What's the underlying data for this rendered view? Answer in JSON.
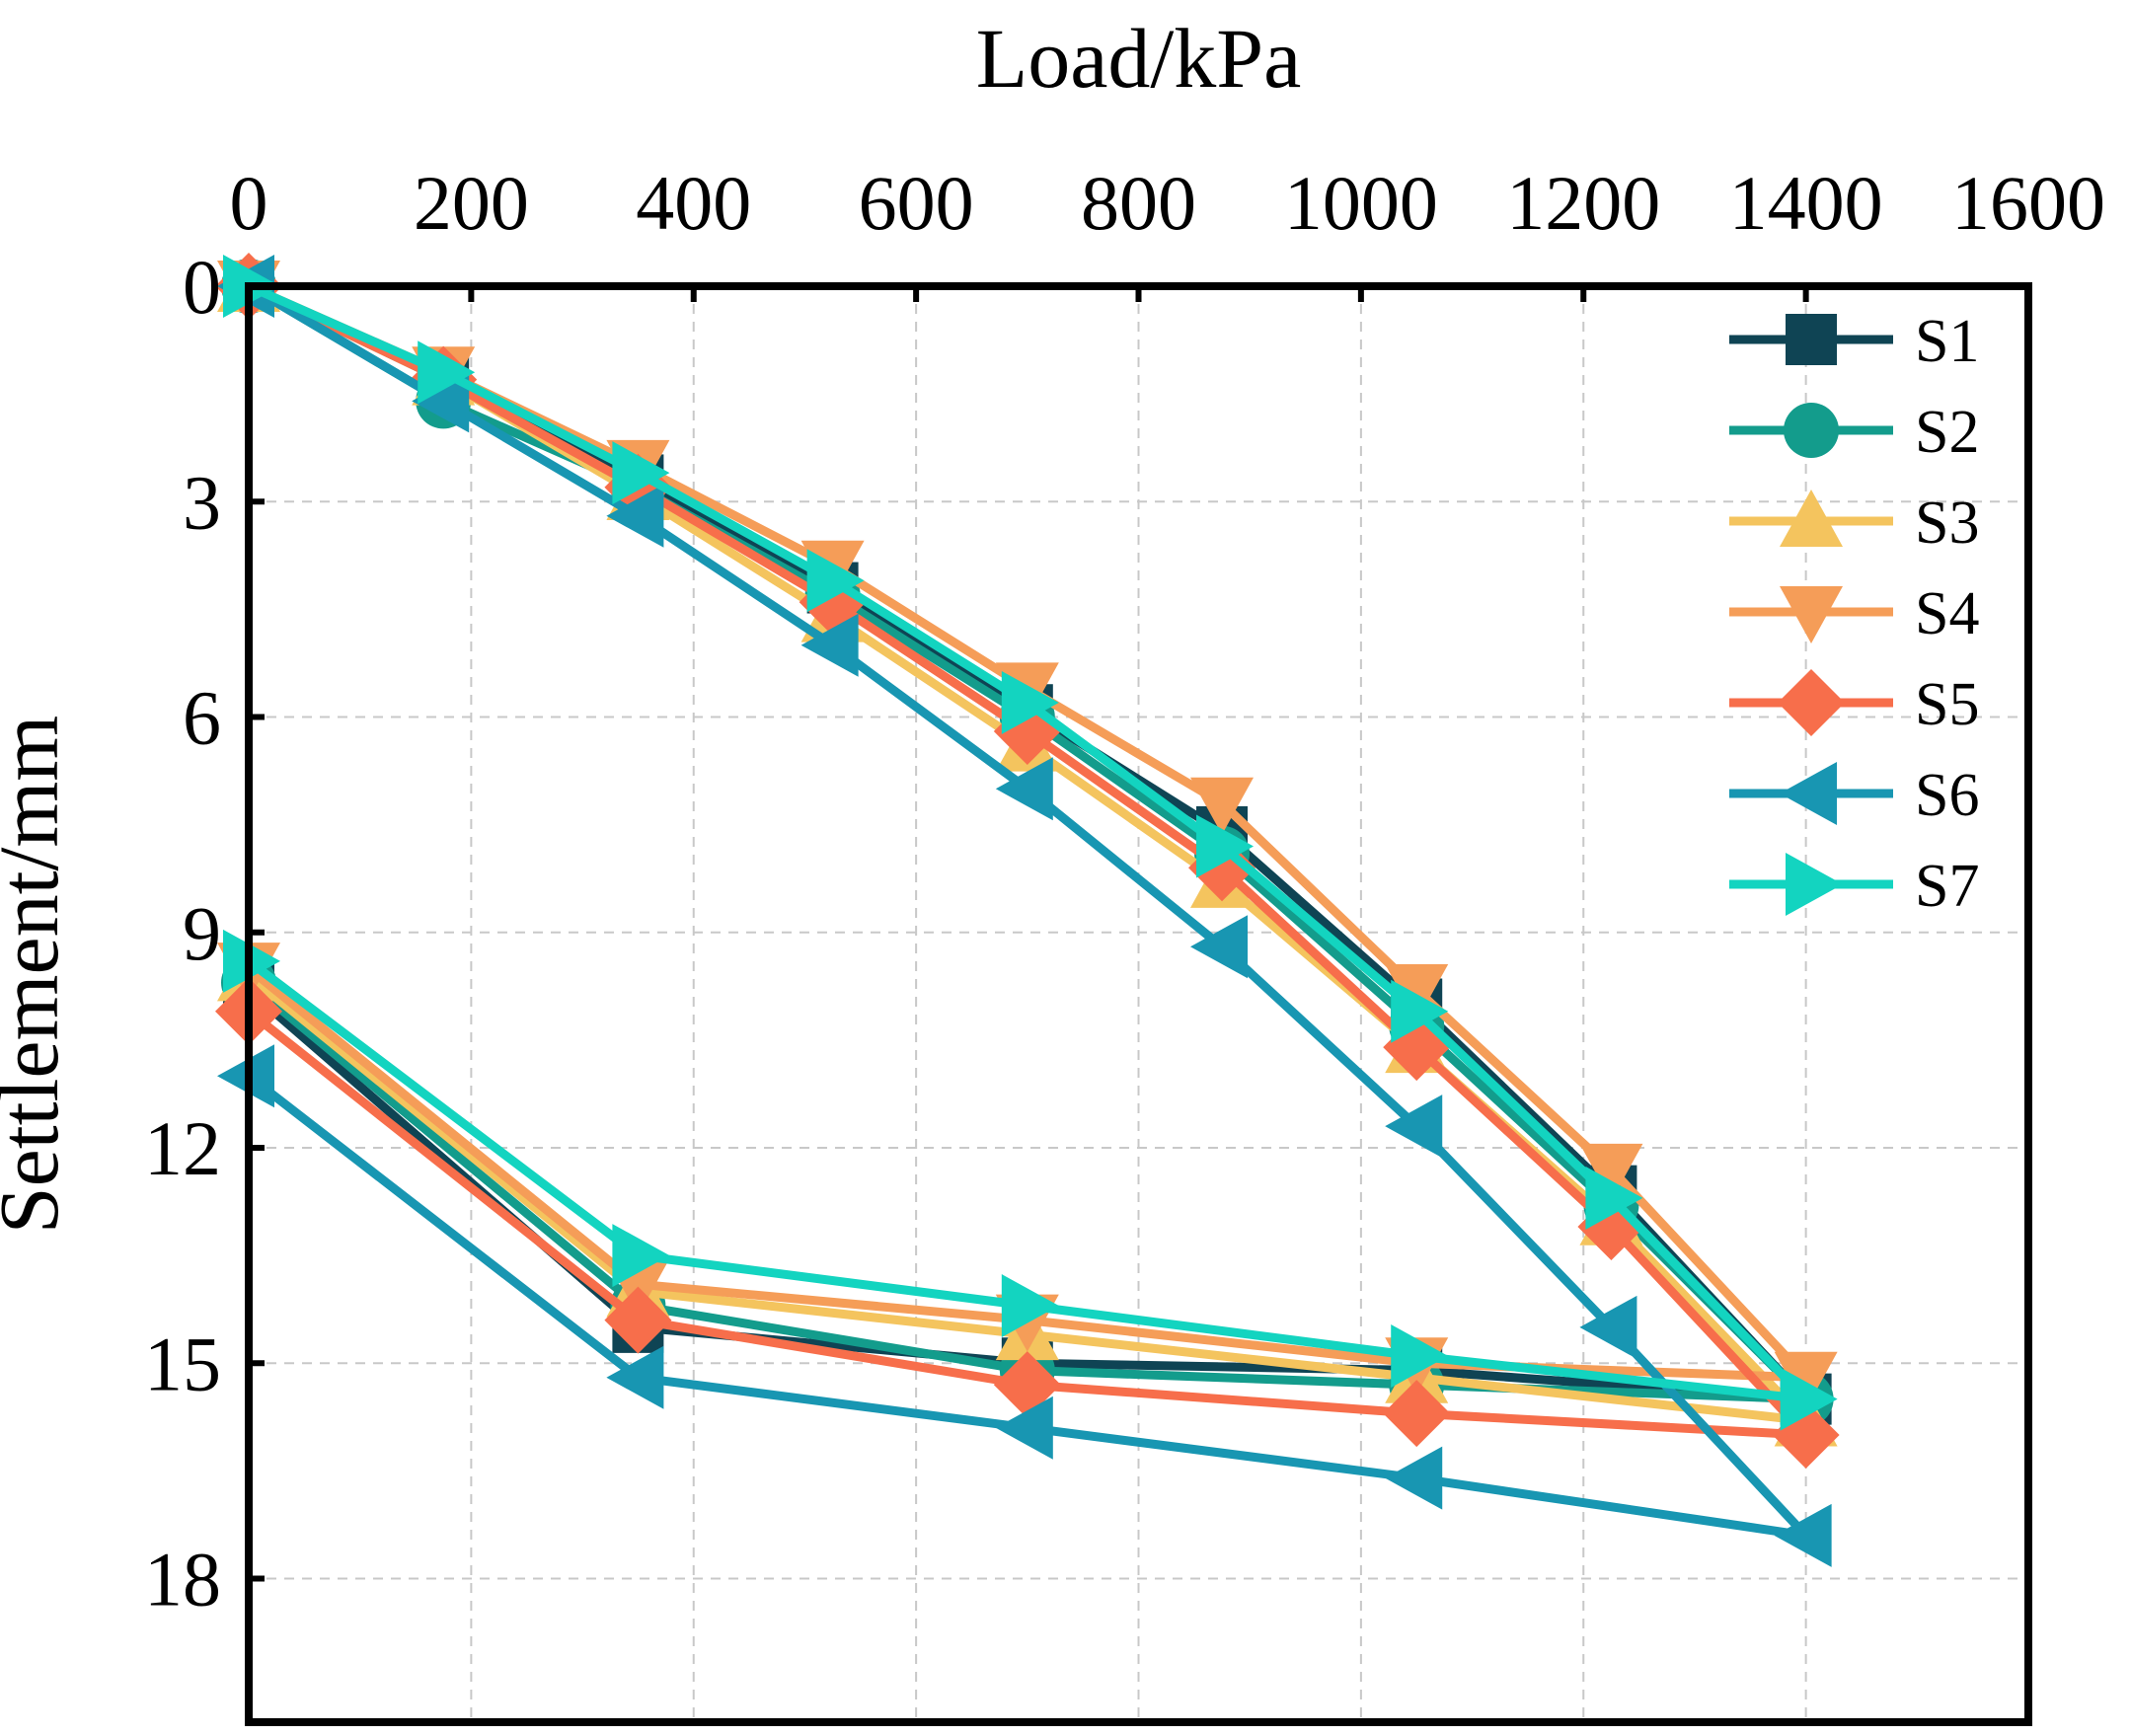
{
  "chart_data": {
    "type": "line",
    "title": "",
    "xlabel": "Load/kPa",
    "ylabel": "Settlement/mm",
    "xlim": [
      0,
      1600
    ],
    "ylim": [
      0,
      20
    ],
    "y_inverted": true,
    "x_axis_position": "top",
    "x_ticks": [
      0,
      200,
      400,
      600,
      800,
      1000,
      1200,
      1400,
      1600
    ],
    "y_ticks": [
      0,
      3,
      6,
      9,
      12,
      15,
      18
    ],
    "grid": true,
    "legend_position": "top-right",
    "series": [
      {
        "name": "S1",
        "color": "#0f4454",
        "marker": "square",
        "x": [
          0,
          175,
          350,
          525,
          700,
          875,
          1050,
          1225,
          1400,
          1050,
          700,
          350,
          0
        ],
        "y": [
          0,
          1.3,
          2.7,
          4.2,
          5.9,
          7.6,
          10.0,
          12.6,
          15.5,
          15.1,
          15.0,
          14.5,
          9.8
        ]
      },
      {
        "name": "S2",
        "color": "#139c8c",
        "marker": "circle",
        "x": [
          0,
          175,
          350,
          525,
          700,
          875,
          1050,
          1225,
          1400,
          1050,
          700,
          350,
          0
        ],
        "y": [
          0,
          1.6,
          2.8,
          4.3,
          6.0,
          7.9,
          10.3,
          12.8,
          15.5,
          15.3,
          15.1,
          14.2,
          9.7
        ]
      },
      {
        "name": "S3",
        "color": "#f4c45e",
        "marker": "triangle-up",
        "x": [
          0,
          175,
          350,
          525,
          700,
          875,
          1050,
          1225,
          1400,
          1050,
          700,
          350,
          0
        ],
        "y": [
          0,
          1.3,
          2.9,
          4.6,
          6.4,
          8.3,
          10.6,
          13.0,
          15.8,
          15.2,
          14.6,
          14.0,
          9.6
        ]
      },
      {
        "name": "S4",
        "color": "#f59d58",
        "marker": "triangle-down",
        "x": [
          0,
          175,
          350,
          525,
          700,
          875,
          1050,
          1225,
          1400,
          1050,
          700,
          350,
          0
        ],
        "y": [
          0,
          1.2,
          2.5,
          3.9,
          5.6,
          7.2,
          9.8,
          12.3,
          15.2,
          15.0,
          14.4,
          13.9,
          9.5
        ]
      },
      {
        "name": "S5",
        "color": "#f76e4b",
        "marker": "diamond",
        "x": [
          0,
          175,
          350,
          525,
          700,
          875,
          1050,
          1225,
          1400,
          1050,
          700,
          350,
          0
        ],
        "y": [
          0,
          1.3,
          2.8,
          4.4,
          6.2,
          8.1,
          10.6,
          13.1,
          16.0,
          15.7,
          15.3,
          14.4,
          10.1
        ]
      },
      {
        "name": "S6",
        "color": "#1896b2",
        "marker": "triangle-left",
        "x": [
          0,
          175,
          350,
          525,
          700,
          875,
          1050,
          1225,
          1400,
          1050,
          700,
          350,
          0
        ],
        "y": [
          0,
          1.6,
          3.2,
          5.0,
          7.0,
          9.2,
          11.7,
          14.5,
          17.4,
          16.6,
          15.9,
          15.2,
          11.0
        ]
      },
      {
        "name": "S7",
        "color": "#13d4c0",
        "marker": "triangle-right",
        "x": [
          0,
          175,
          350,
          525,
          700,
          875,
          1050,
          1225,
          1400,
          1050,
          700,
          350,
          0
        ],
        "y": [
          0,
          1.2,
          2.6,
          4.1,
          5.8,
          7.8,
          10.1,
          12.7,
          15.5,
          14.9,
          14.2,
          13.5,
          9.4
        ]
      }
    ]
  }
}
